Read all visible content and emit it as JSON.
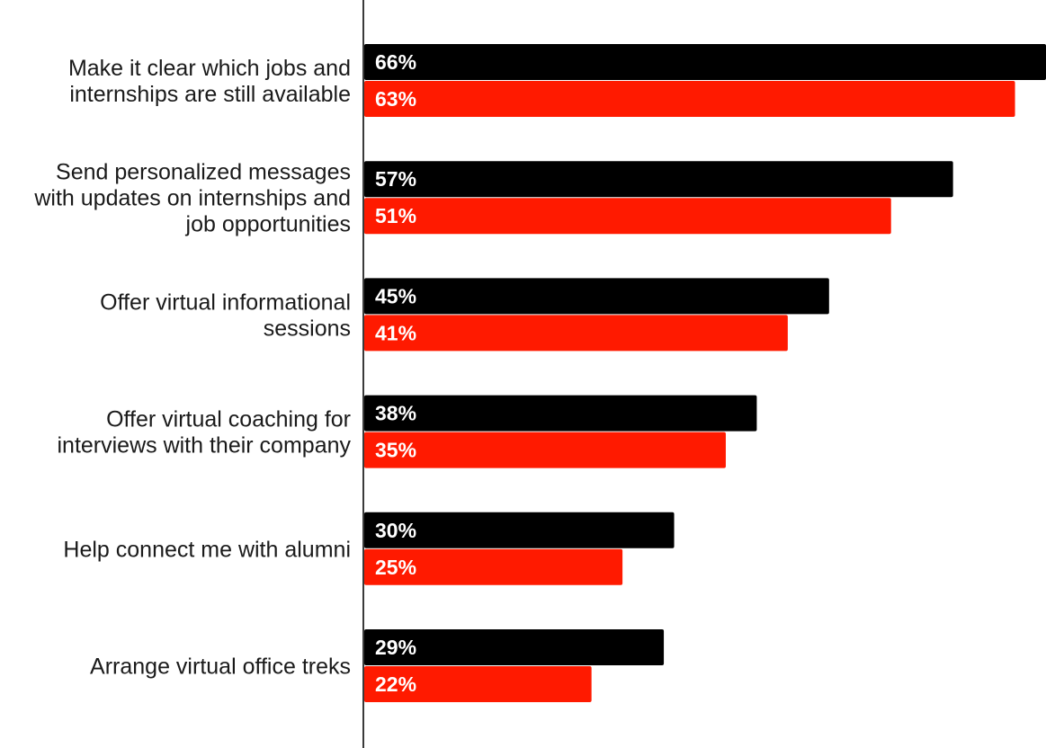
{
  "chart_data": {
    "type": "bar",
    "orientation": "horizontal",
    "categories": [
      "Make it clear which jobs and internships are still available",
      "Send personalized messages with updates on internships and job opportunities",
      "Offer virtual informational sessions",
      "Offer virtual coaching for interviews with their company",
      "Help connect me with alumni",
      "Arrange virtual office treks"
    ],
    "series": [
      {
        "color": "#000000",
        "values": [
          66,
          57,
          45,
          38,
          30,
          29
        ],
        "labels": [
          "66%",
          "57%",
          "45%",
          "38%",
          "30%",
          "29%"
        ]
      },
      {
        "color": "#ff1a00",
        "values": [
          63,
          51,
          41,
          35,
          25,
          22
        ],
        "labels": [
          "63%",
          "51%",
          "41%",
          "35%",
          "25%",
          "22%"
        ]
      }
    ],
    "value_unit": "%",
    "xlim": [
      0,
      66
    ],
    "grid": false,
    "legend": false,
    "title": "",
    "xlabel": "",
    "ylabel": ""
  }
}
